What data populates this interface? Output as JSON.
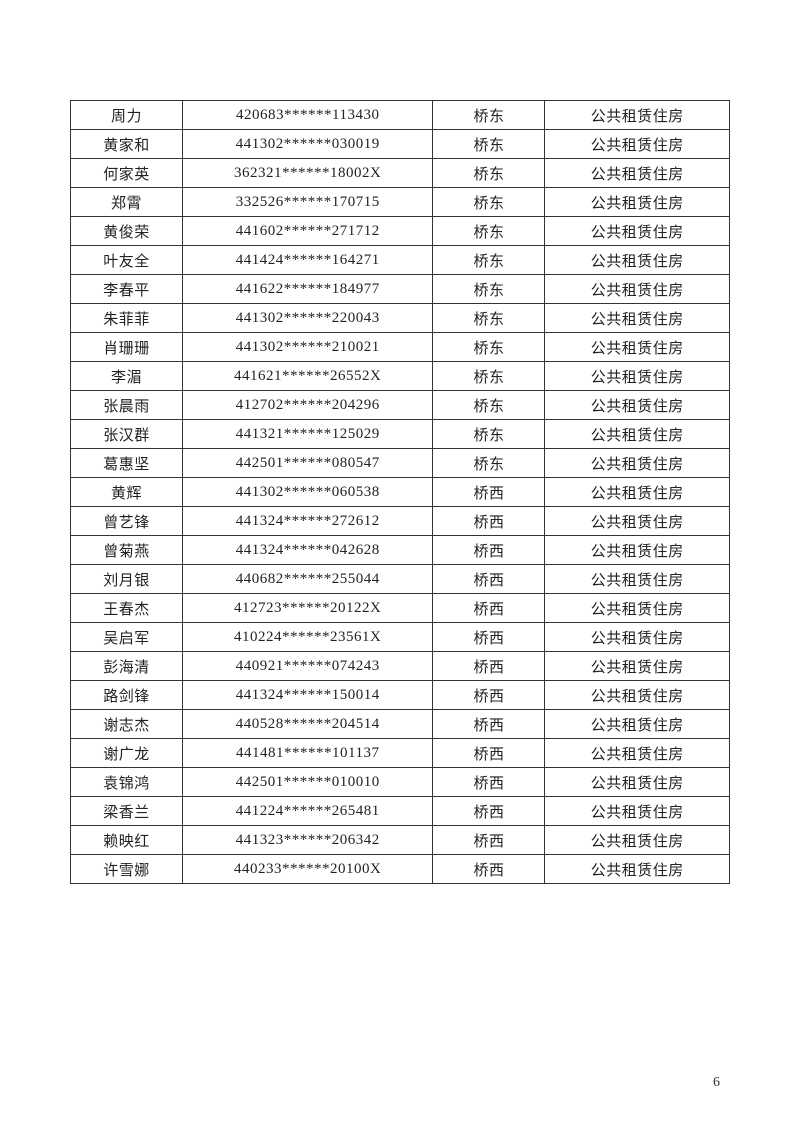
{
  "page_number": "6",
  "table": {
    "background_color": "#ffffff",
    "border_color": "#333333",
    "text_color": "#222222",
    "font_size_pt": 11,
    "column_widths_pct": [
      17,
      38,
      17,
      28
    ],
    "rows": [
      [
        "周力",
        "420683******113430",
        "桥东",
        "公共租赁住房"
      ],
      [
        "黄家和",
        "441302******030019",
        "桥东",
        "公共租赁住房"
      ],
      [
        "何家英",
        "362321******18002X",
        "桥东",
        "公共租赁住房"
      ],
      [
        "郑霄",
        "332526******170715",
        "桥东",
        "公共租赁住房"
      ],
      [
        "黄俊荣",
        "441602******271712",
        "桥东",
        "公共租赁住房"
      ],
      [
        "叶友全",
        "441424******164271",
        "桥东",
        "公共租赁住房"
      ],
      [
        "李春平",
        "441622******184977",
        "桥东",
        "公共租赁住房"
      ],
      [
        "朱菲菲",
        "441302******220043",
        "桥东",
        "公共租赁住房"
      ],
      [
        "肖珊珊",
        "441302******210021",
        "桥东",
        "公共租赁住房"
      ],
      [
        "李湄",
        "441621******26552X",
        "桥东",
        "公共租赁住房"
      ],
      [
        "张晨雨",
        "412702******204296",
        "桥东",
        "公共租赁住房"
      ],
      [
        "张汉群",
        "441321******125029",
        "桥东",
        "公共租赁住房"
      ],
      [
        "葛惠坚",
        "442501******080547",
        "桥东",
        "公共租赁住房"
      ],
      [
        "黄辉",
        "441302******060538",
        "桥西",
        "公共租赁住房"
      ],
      [
        "曾艺锋",
        "441324******272612",
        "桥西",
        "公共租赁住房"
      ],
      [
        "曾菊燕",
        "441324******042628",
        "桥西",
        "公共租赁住房"
      ],
      [
        "刘月银",
        "440682******255044",
        "桥西",
        "公共租赁住房"
      ],
      [
        "王春杰",
        "412723******20122X",
        "桥西",
        "公共租赁住房"
      ],
      [
        "吴启军",
        "410224******23561X",
        "桥西",
        "公共租赁住房"
      ],
      [
        "彭海清",
        "440921******074243",
        "桥西",
        "公共租赁住房"
      ],
      [
        "路剑锋",
        "441324******150014",
        "桥西",
        "公共租赁住房"
      ],
      [
        "谢志杰",
        "440528******204514",
        "桥西",
        "公共租赁住房"
      ],
      [
        "谢广龙",
        "441481******101137",
        "桥西",
        "公共租赁住房"
      ],
      [
        "袁锦鸿",
        "442501******010010",
        "桥西",
        "公共租赁住房"
      ],
      [
        "梁香兰",
        "441224******265481",
        "桥西",
        "公共租赁住房"
      ],
      [
        "赖映红",
        "441323******206342",
        "桥西",
        "公共租赁住房"
      ],
      [
        "许雪娜",
        "440233******20100X",
        "桥西",
        "公共租赁住房"
      ]
    ]
  }
}
